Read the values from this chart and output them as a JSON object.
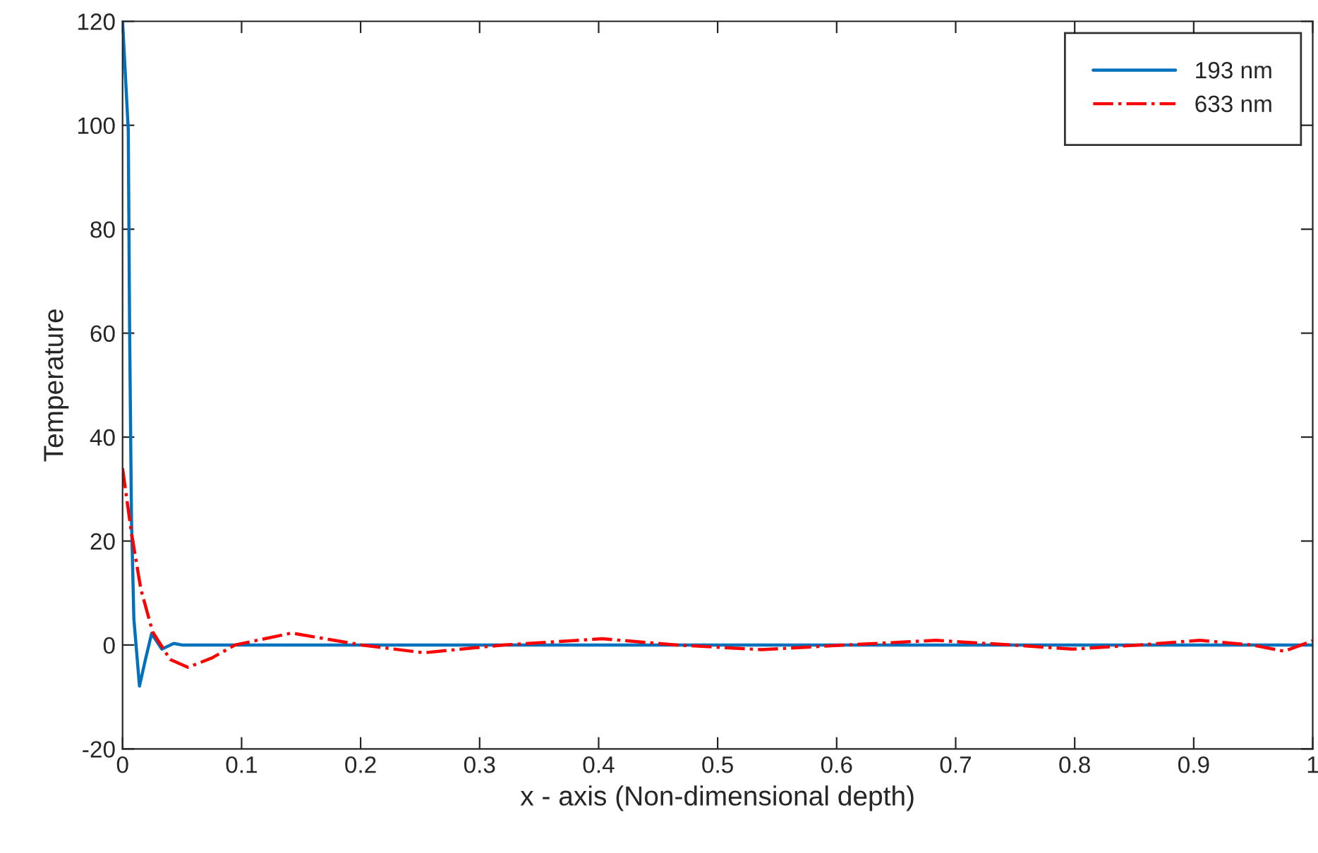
{
  "chart_data": {
    "type": "line",
    "xlabel": "x - axis (Non-dimensional depth)",
    "ylabel": "Temperature",
    "xlim": [
      0,
      1
    ],
    "xticks": [
      0,
      0.1,
      0.2,
      0.3,
      0.4,
      0.5,
      0.6,
      0.7,
      0.8,
      0.9,
      1
    ],
    "ylim": [
      -20,
      120
    ],
    "yticks": [
      -20,
      0,
      20,
      40,
      60,
      80,
      100,
      120
    ],
    "grid": false,
    "legend": "top right",
    "series": [
      {
        "name": "193 nm",
        "color": "#0072bd",
        "line_style": "solid",
        "x": [
          0,
          0.0048,
          0.0059,
          0.0075,
          0.0095,
          0.0142,
          0.019,
          0.0244,
          0.033,
          0.043,
          0.05,
          1
        ],
        "values": [
          120,
          99,
          61,
          24,
          5,
          -7.9,
          -3,
          2.2,
          -0.8,
          0.3,
          0,
          0
        ]
      },
      {
        "name": "633 nm",
        "color": "#ff0000",
        "line_style": "dashdot",
        "x": [
          0,
          0.0075,
          0.0154,
          0.0253,
          0.04,
          0.055,
          0.075,
          0.0945,
          0.142,
          0.201,
          0.253,
          0.32,
          0.403,
          0.466,
          0.537,
          0.608,
          0.683,
          0.747,
          0.798,
          0.854,
          0.905,
          0.949,
          0.976,
          1
        ],
        "values": [
          34,
          21.5,
          10.7,
          2.5,
          -2.8,
          -4.3,
          -2.5,
          0,
          2.3,
          0,
          -1.5,
          0,
          1.2,
          0,
          -0.9,
          0,
          0.9,
          0,
          -0.8,
          0,
          0.9,
          0,
          -1.2,
          0.8
        ]
      }
    ]
  }
}
